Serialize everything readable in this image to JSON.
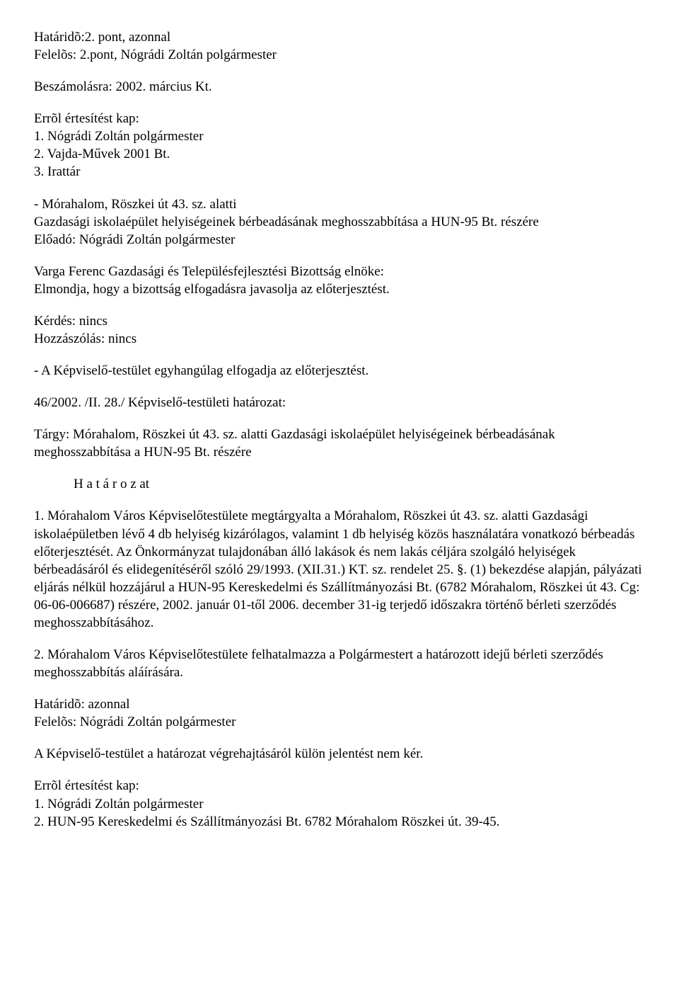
{
  "text_color": "#000000",
  "background_color": "#ffffff",
  "font_family": "Times New Roman",
  "font_size_pt": 14,
  "h1": {
    "line1": "Határidõ:2. pont, azonnal",
    "line2": "Felelõs: 2.pont, Nógrádi Zoltán polgármester"
  },
  "p1": "Beszámolásra: 2002. március Kt.",
  "notify": {
    "title": "Errõl értesítést kap:",
    "item1": "1. Nógrádi Zoltán polgármester",
    "item2": "2. Vajda-Művek 2001 Bt.",
    "item3": "3. Irattár"
  },
  "topic": {
    "line1": "- Mórahalom, Röszkei út 43. sz. alatti",
    "line2": "Gazdasági iskolaépület helyiségeinek bérbeadásának meghosszabbítása a HUN-95 Bt. részére",
    "line3": "Előadó: Nógrádi Zoltán polgármester"
  },
  "committee": {
    "line1": "Varga Ferenc Gazdasági és Településfejlesztési Bizottság elnöke:",
    "line2": "Elmondja, hogy a bizottság elfogadásra javasolja az előterjesztést."
  },
  "qna": {
    "q": "Kérdés: nincs",
    "c": "Hozzászólás: nincs"
  },
  "decision": "- A Képviselő-testület egyhangúlag elfogadja az előterjesztést.",
  "resolution_no": "46/2002. /II. 28./ Képviselő-testületi határozat:",
  "subject": "Tárgy:  Mórahalom, Röszkei út 43. sz. alatti Gazdasági iskolaépület helyiségeinek bérbeadásának meghosszabbítása a HUN-95 Bt. részére",
  "hatarozat_heading": "H a t á r o z at",
  "res_body1": "1. Mórahalom Város Képviselőtestülete megtárgyalta a Mórahalom, Röszkei út 43. sz. alatti Gazdasági iskolaépületben lévő 4 db helyiség kizárólagos, valamint 1 db helyiség közös használatára vonatkozó bérbeadás előterjesztését. Az Önkormányzat tulajdonában álló lakások és nem lakás céljára szolgáló helyiségek bérbeadásáról és elidegenítéséről szóló 29/1993. (XII.31.) KT. sz. rendelet 25. §. (1) bekezdése alapján, pályázati eljárás nélkül hozzájárul a HUN-95 Kereskedelmi és Szállítmányozási Bt. (6782 Mórahalom, Röszkei út 43. Cg: 06-06-006687) részére, 2002. január 01-től 2006. december 31-ig terjedő időszakra történő bérleti szerződés meghosszabbításához.",
  "res_body2": "2. Mórahalom Város Képviselőtestülete felhatalmazza a Polgármestert a határozott idejű bérleti szerződés meghosszabbítás aláírására.",
  "deadline": {
    "line1": "Határidõ: azonnal",
    "line2": "Felelõs: Nógrádi Zoltán polgármester"
  },
  "noreport": "A Képviselő-testület a határozat végrehajtásáról külön jelentést nem kér.",
  "notify2": {
    "title": "Errõl értesítést kap:",
    "item1": "1. Nógrádi Zoltán polgármester",
    "item2": "2. HUN-95 Kereskedelmi és Szállítmányozási Bt. 6782 Mórahalom Röszkei út. 39-45."
  }
}
